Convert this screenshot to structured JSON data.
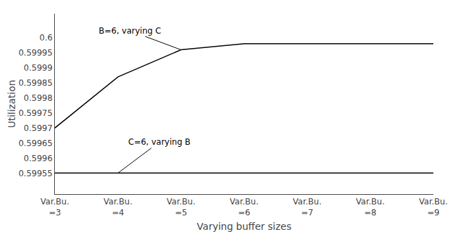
{
  "chart_data": {
    "type": "line",
    "categories": [
      "Var.Bu.\n=3",
      "Var.Bu.\n=4",
      "Var.Bu.\n=5",
      "Var.Bu.\n=6",
      "Var.Bu.\n=7",
      "Var.Bu.\n=8",
      "Var.Bu.\n=9"
    ],
    "series": [
      {
        "color": "#000000",
        "values": [
          0.5997,
          0.59987,
          0.59996,
          0.59998,
          0.59998,
          0.59998,
          0.59998
        ]
      },
      {
        "color": "#000000",
        "values": [
          0.59955,
          0.59955,
          0.59955,
          0.59955,
          0.59955,
          0.59955,
          0.59955
        ]
      }
    ],
    "annotations": [
      "B=6, varying C",
      "C=6, varying B"
    ],
    "xlabel": "Varying buffer sizes",
    "ylabel": "Utilization",
    "ylim": [
      0.59948,
      0.60008
    ],
    "yticks": [
      0.59955,
      0.5996,
      0.59965,
      0.5997,
      0.59975,
      0.5998,
      0.59985,
      0.5999,
      0.59995,
      0.6
    ],
    "grid": false
  }
}
